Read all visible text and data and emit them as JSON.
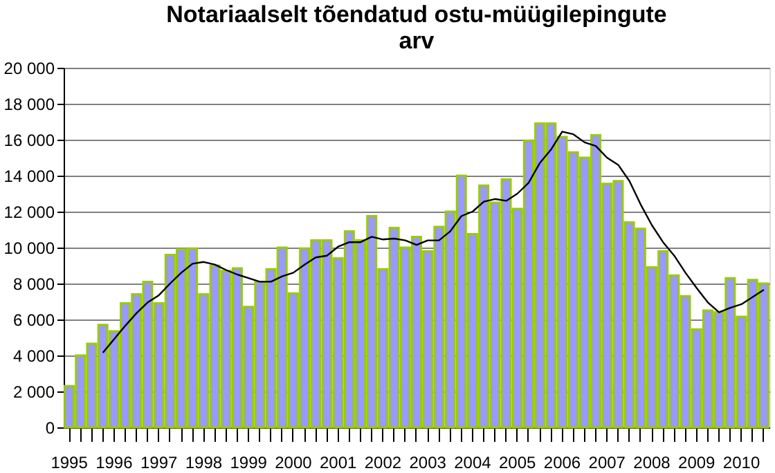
{
  "chart_data": {
    "type": "bar",
    "title": [
      "Notariaalselt tõendatud ostu-müügilepingute",
      "arv"
    ],
    "categories": [
      "1995",
      null,
      null,
      null,
      "1996",
      null,
      null,
      null,
      "1997",
      null,
      null,
      null,
      "1998",
      null,
      null,
      null,
      "1999",
      null,
      null,
      null,
      "2000",
      null,
      null,
      null,
      "2001",
      null,
      null,
      null,
      "2002",
      null,
      null,
      null,
      "2003",
      null,
      null,
      null,
      "2004",
      null,
      null,
      null,
      "2005",
      null,
      null,
      null,
      "2006",
      null,
      null,
      null,
      "2007",
      null,
      null,
      null,
      "2008",
      null,
      null,
      null,
      "2009",
      null,
      null,
      null,
      "2010",
      null,
      null
    ],
    "series": [
      {
        "color": "#9999ff",
        "values": [
          2300,
          4000,
          4650,
          5700,
          5350,
          6900,
          7400,
          8100,
          6900,
          9600,
          9900,
          9950,
          7400,
          9000,
          8700,
          8850,
          6700,
          8100,
          8800,
          10000,
          7450,
          9950,
          10400,
          10400,
          9400,
          10900,
          10400,
          11750,
          8800,
          11100,
          10000,
          10600,
          9800,
          11150,
          12000,
          14000,
          10750,
          13450,
          12500,
          13800,
          12150,
          15950,
          16900,
          16900,
          16150,
          15300,
          15000,
          16250,
          13550,
          13700,
          11400,
          11050,
          8900,
          9800,
          8450,
          7300,
          5450,
          6500,
          6400,
          8300,
          6150,
          8200,
          8000
        ]
      },
      {
        "type": "line",
        "color": "#000000",
        "values": [
          null,
          null,
          null,
          4150,
          4900,
          5650,
          6350,
          6950,
          7350,
          8000,
          8600,
          9100,
          9200,
          9050,
          8750,
          8500,
          8300,
          8100,
          8100,
          8400,
          8600,
          9050,
          9450,
          9550,
          10050,
          10300,
          10300,
          10600,
          10450,
          10500,
          10400,
          10150,
          10400,
          10400,
          10900,
          11750,
          12000,
          12550,
          12700,
          12600,
          13000,
          13600,
          14700,
          15450,
          16450,
          16300,
          15850,
          15650,
          15000,
          14600,
          13700,
          12400,
          11250,
          10300,
          9550,
          8600,
          7750,
          6950,
          6400,
          6650,
          6850,
          7250,
          7650
        ]
      }
    ],
    "ylim": [
      0,
      20000
    ],
    "yticks": [
      0,
      {
        "value": 2000,
        "label": "2 000"
      },
      {
        "value": 4000,
        "label": "4 000"
      },
      {
        "value": 6000,
        "label": "6 000"
      },
      {
        "value": 8000,
        "label": "8 000"
      },
      {
        "value": 10000,
        "label": "10 000"
      },
      {
        "value": 12000,
        "label": "12 000"
      },
      {
        "value": 14000,
        "label": "14 000"
      },
      {
        "value": 16000,
        "label": "16 000"
      },
      {
        "value": 18000,
        "label": "18 000"
      },
      {
        "value": 20000,
        "label": "20 000"
      }
    ],
    "grid": "y"
  }
}
